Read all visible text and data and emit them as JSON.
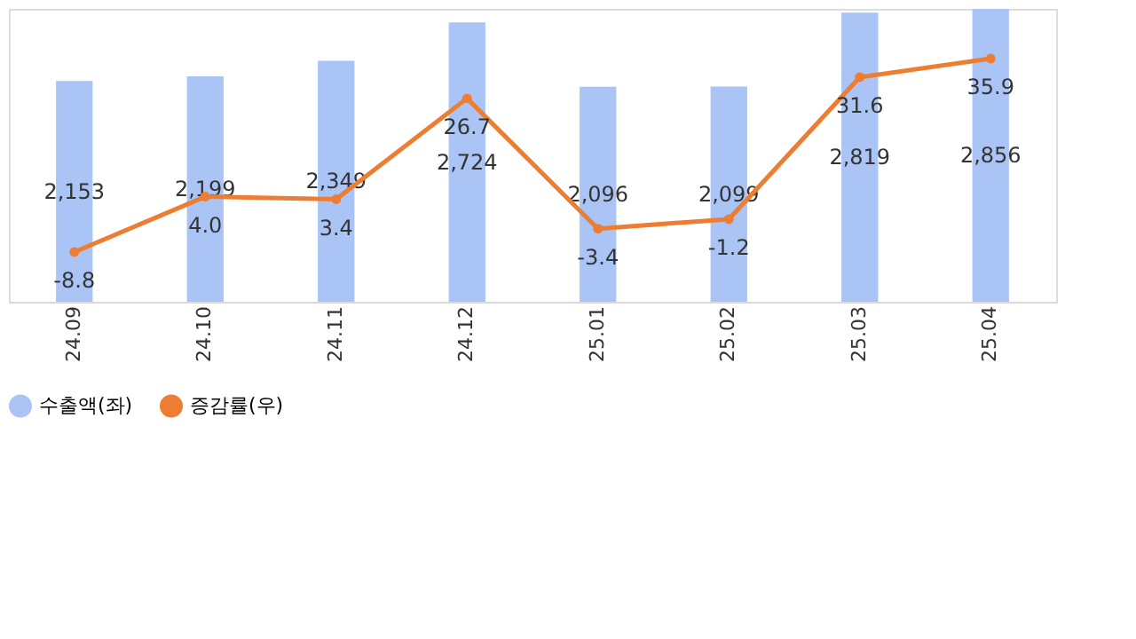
{
  "chart_data": {
    "type": "bar",
    "categories": [
      "24.09",
      "24.10",
      "24.11",
      "24.12",
      "25.01",
      "25.02",
      "25.03",
      "25.04"
    ],
    "series": [
      {
        "name": "수출액(좌)",
        "color": "#a9c4f5",
        "values": [
          2153,
          2199,
          2349,
          2724,
          2096,
          2099,
          2819,
          2856
        ],
        "value_labels": [
          "2,153",
          "2,199",
          "2,349",
          "2,724",
          "2,096",
          "2,099",
          "2,819",
          "2,856"
        ]
      },
      {
        "name": "증감률(우)",
        "type": "line",
        "axis": "y2",
        "color": "#ed7d31",
        "values": [
          -8.8,
          4.0,
          3.4,
          26.7,
          -3.4,
          -1.2,
          31.6,
          35.9
        ],
        "value_labels": [
          "-8.8",
          "4.0",
          "3.4",
          "26.7",
          "-3.4",
          "-1.2",
          "31.6",
          "35.9"
        ]
      }
    ],
    "legend": "bottom",
    "marker": "circle",
    "grid": false,
    "tick_labels": "x"
  }
}
